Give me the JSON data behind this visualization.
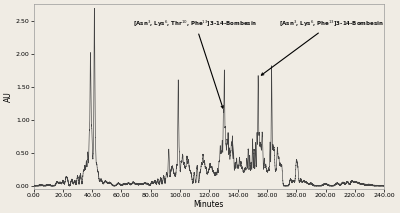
{
  "title": "",
  "xlabel": "Minutes",
  "ylabel": "AU",
  "xlim": [
    0,
    240
  ],
  "ylim": [
    -0.05,
    2.75
  ],
  "yticks": [
    0.0,
    0.5,
    1.0,
    1.5,
    2.0,
    2.5
  ],
  "xticks": [
    0,
    20,
    40,
    60,
    80,
    100,
    120,
    140,
    160,
    180,
    200,
    220,
    240
  ],
  "xtick_labels": [
    "0.00",
    "20.00",
    "40.00",
    "60.00",
    "80.00",
    "100.00",
    "120.00",
    "140.00",
    "160.00",
    "180.00",
    "200.00",
    "220.00",
    "240.00"
  ],
  "ytick_labels": [
    "0.00",
    "0.50",
    "1.00",
    "1.50",
    "2.00",
    "2.50"
  ],
  "label1": "[Asn$^3$, Lys$^6$, Thr$^{10}$, Phe$^{13}$]3-14-Bombesin",
  "label2": "[Asn$^3$, Lys$^6$, Phe$^{13}$]3-14-Bombesin",
  "background_color": "#f0ece4",
  "line_color": "#444444",
  "text_color": "#111111"
}
